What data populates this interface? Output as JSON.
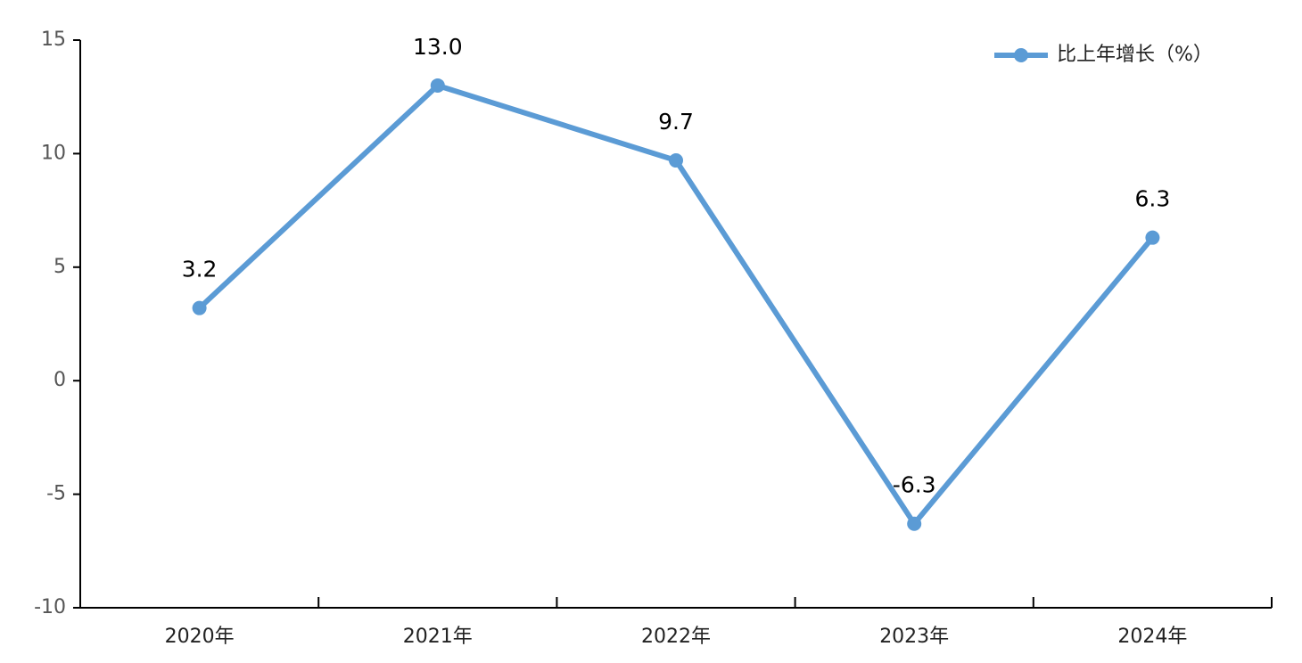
{
  "chart_data": {
    "type": "line",
    "categories": [
      "2020年",
      "2021年",
      "2022年",
      "2023年",
      "2024年"
    ],
    "series": [
      {
        "name": "比上年增长（%）",
        "color": "#5b9bd5",
        "values": [
          3.2,
          13.0,
          9.7,
          -6.3,
          6.3
        ],
        "value_labels": [
          "3.2",
          "13.0",
          "9.7",
          "-6.3",
          "6.3"
        ]
      }
    ],
    "ylim": [
      -10,
      15
    ],
    "yticks": [
      -10,
      -5,
      0,
      5,
      10,
      15
    ],
    "grid": false,
    "legend": "upper right"
  }
}
